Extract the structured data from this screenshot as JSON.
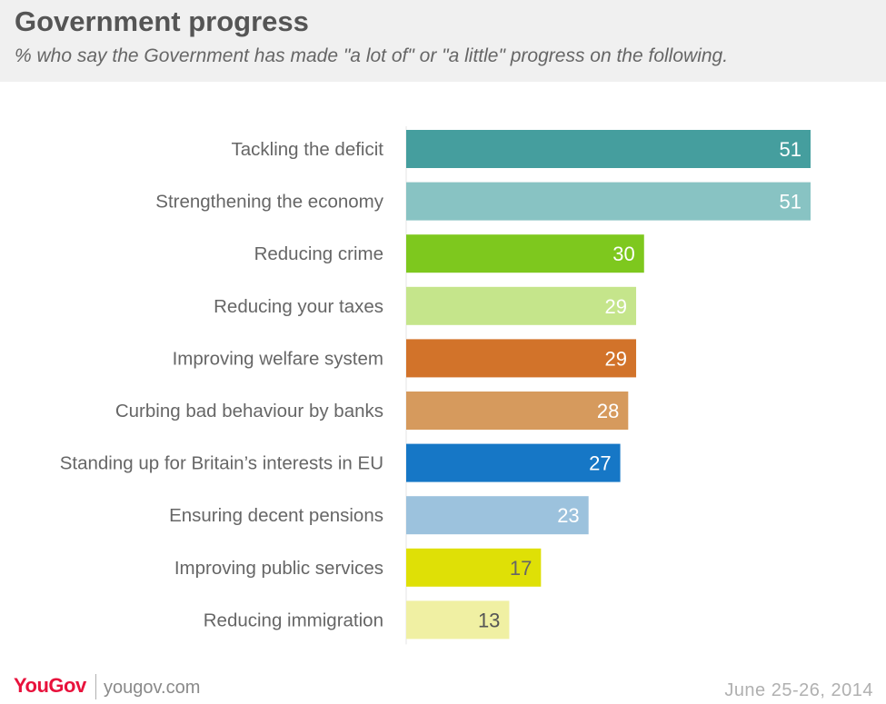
{
  "header": {
    "title": "Government progress",
    "subtitle": "% who say the Government has made \"a lot of\" or \"a little\" progress on the following."
  },
  "footer": {
    "brand": "YouGov",
    "site": "yougov.com",
    "date": "June 25-26, 2014"
  },
  "chart_data": {
    "type": "bar",
    "orientation": "horizontal",
    "title": "Government progress",
    "subtitle": "% who say the Government has made \"a lot of\" or \"a little\" progress on the following.",
    "xlabel": "",
    "ylabel": "",
    "xlim": [
      0,
      51
    ],
    "grid": false,
    "legend": "none",
    "categories": [
      "Tackling the deficit",
      "Strengthening the economy",
      "Reducing crime",
      "Reducing your taxes",
      "Improving welfare system",
      "Curbing bad behaviour by banks",
      "Standing up for Britain’s interests in EU",
      "Ensuring decent pensions",
      "Improving public services",
      "Reducing immigration"
    ],
    "values": [
      51,
      51,
      30,
      29,
      29,
      28,
      27,
      23,
      17,
      13
    ],
    "colors": [
      "#459e9e",
      "#88c3c3",
      "#7ec81e",
      "#c5e58b",
      "#d2732a",
      "#d69a5d",
      "#1677c6",
      "#9cc2dd",
      "#dfe006",
      "#f0f0a3"
    ],
    "label_colors": [
      "#ffffff",
      "#ffffff",
      "#ffffff",
      "#ffffff",
      "#ffffff",
      "#ffffff",
      "#ffffff",
      "#ffffff",
      "#666666",
      "#555555"
    ]
  }
}
